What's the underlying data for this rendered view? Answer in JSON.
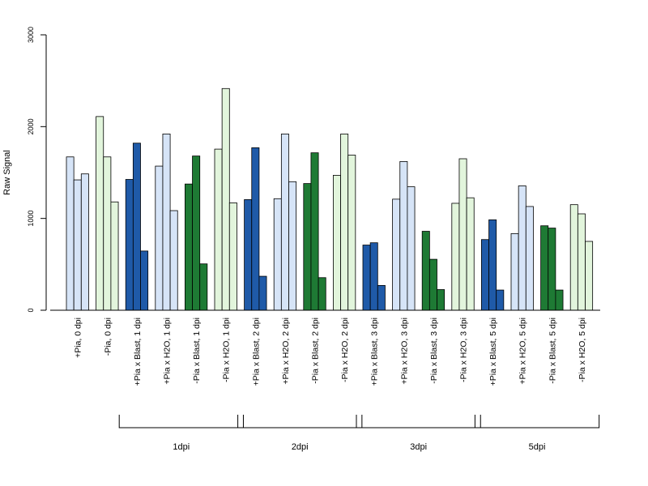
{
  "chart_data": {
    "type": "bar",
    "xlabel": "",
    "ylabel": "Raw Signal",
    "ylim": [
      0,
      3000
    ],
    "yticks": [
      0,
      1000,
      2000,
      3000
    ],
    "grid": false,
    "legend": "none",
    "bar_border_color": "#000000",
    "replicates_per_category": 3,
    "categories": [
      {
        "label": "+Pia, 0 dpi",
        "color": "#d6e4f7",
        "values": [
          1670,
          1420,
          1485
        ]
      },
      {
        "label": "-Pia, 0 dpi",
        "color": "#e2f5dc",
        "values": [
          2110,
          1670,
          1180
        ]
      },
      {
        "label": "+Pia x Blast, 1 dpi",
        "color": "#1f5aa8",
        "values": [
          1425,
          1820,
          645
        ]
      },
      {
        "label": "+Pia x H2O, 1 dpi",
        "color": "#d6e4f7",
        "values": [
          1570,
          1920,
          1085
        ]
      },
      {
        "label": "-Pia x Blast, 1 dpi",
        "color": "#1e7a34",
        "values": [
          1375,
          1680,
          505
        ]
      },
      {
        "label": "-Pia x H2O, 1 dpi",
        "color": "#e2f5dc",
        "values": [
          1755,
          2415,
          1170
        ]
      },
      {
        "label": "+Pia x Blast, 2 dpi",
        "color": "#1f5aa8",
        "values": [
          1205,
          1770,
          370
        ]
      },
      {
        "label": "+Pia x H2O, 2 dpi",
        "color": "#d6e4f7",
        "values": [
          1215,
          1920,
          1400
        ]
      },
      {
        "label": "-Pia x Blast, 2 dpi",
        "color": "#1e7a34",
        "values": [
          1380,
          1715,
          355
        ]
      },
      {
        "label": "-Pia x H2O, 2 dpi",
        "color": "#e2f5dc",
        "values": [
          1470,
          1920,
          1690
        ]
      },
      {
        "label": "+Pia x Blast, 3 dpi",
        "color": "#1f5aa8",
        "values": [
          710,
          735,
          270
        ]
      },
      {
        "label": "+Pia x H2O, 3 dpi",
        "color": "#d6e4f7",
        "values": [
          1210,
          1620,
          1345
        ]
      },
      {
        "label": "-Pia x Blast, 3 dpi",
        "color": "#1e7a34",
        "values": [
          860,
          555,
          225
        ]
      },
      {
        "label": "-Pia x H2O, 3 dpi",
        "color": "#e2f5dc",
        "values": [
          1165,
          1650,
          1225
        ]
      },
      {
        "label": "+Pia x Blast, 5 dpi",
        "color": "#1f5aa8",
        "values": [
          770,
          985,
          220
        ]
      },
      {
        "label": "+Pia x H2O, 5 dpi",
        "color": "#d6e4f7",
        "values": [
          835,
          1355,
          1130
        ]
      },
      {
        "label": "-Pia x Blast, 5 dpi",
        "color": "#1e7a34",
        "values": [
          920,
          895,
          220
        ]
      },
      {
        "label": "-Pia x H2O, 5 dpi",
        "color": "#e2f5dc",
        "values": [
          1150,
          1050,
          750
        ]
      }
    ],
    "groups": [
      {
        "label": "1dpi",
        "from": 2,
        "to": 5
      },
      {
        "label": "2dpi",
        "from": 6,
        "to": 9
      },
      {
        "label": "3dpi",
        "from": 10,
        "to": 13
      },
      {
        "label": "5dpi",
        "from": 14,
        "to": 17
      }
    ]
  }
}
